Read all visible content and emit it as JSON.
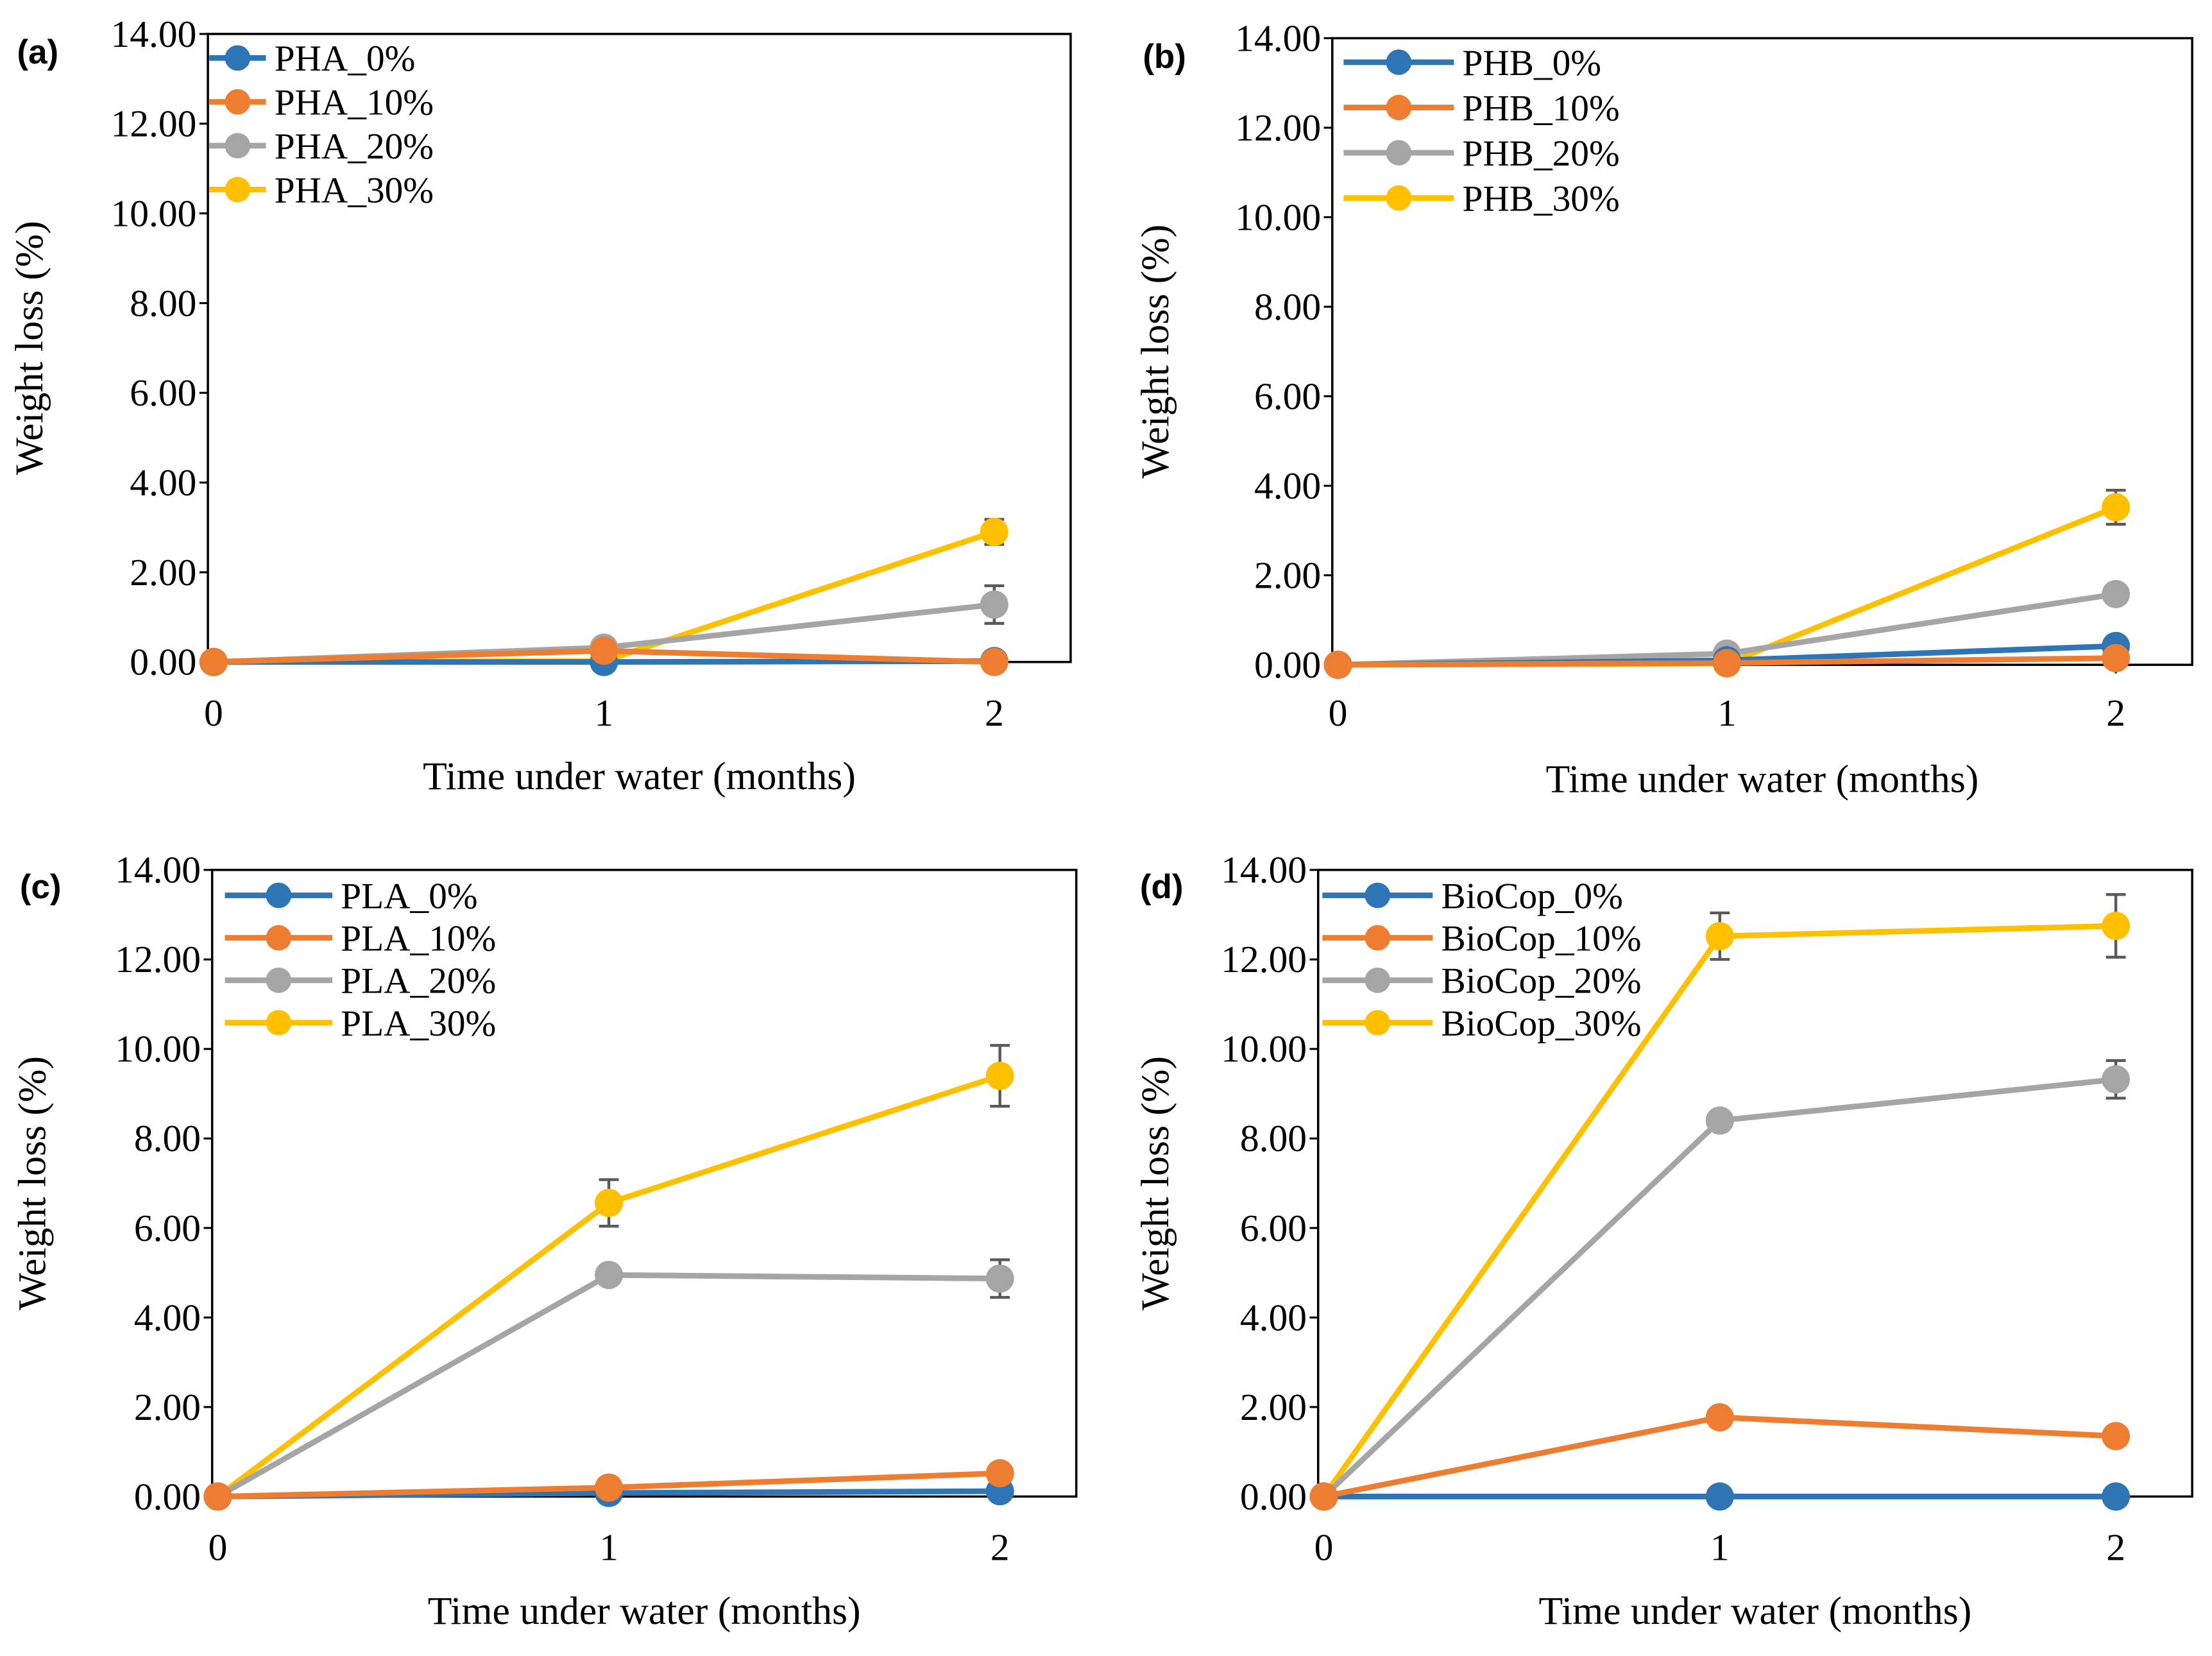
{
  "colors": {
    "s0": "#2E75B6",
    "s1": "#ED7D31",
    "s2": "#A5A5A5",
    "s3": "#FFC000",
    "errorbar": "#595959",
    "axis": "#000000"
  },
  "chart_data": [
    {
      "type": "line",
      "panel_label": "(a)",
      "xlabel": "Time under water (months)",
      "ylabel": "Weight loss (%)",
      "x": [
        0,
        1,
        2
      ],
      "ylim": [
        0,
        14
      ],
      "yticks": [
        "0.00",
        "2.00",
        "4.00",
        "6.00",
        "8.00",
        "10.00",
        "12.00",
        "14.00"
      ],
      "xticks": [
        "0",
        "1",
        "2"
      ],
      "legend_position": "top-left",
      "series": [
        {
          "name": "PHA_0%",
          "values": [
            0,
            0,
            0.02
          ],
          "errors": [
            0,
            0,
            0
          ]
        },
        {
          "name": "PHA_10%",
          "values": [
            0,
            0.25,
            0
          ],
          "errors": [
            0,
            0,
            0
          ]
        },
        {
          "name": "PHA_20%",
          "values": [
            0,
            0.32,
            1.28
          ],
          "errors": [
            0,
            0,
            0.42
          ]
        },
        {
          "name": "PHA_30%",
          "values": [
            0,
            0.02,
            2.9
          ],
          "errors": [
            0,
            0,
            0.28
          ]
        }
      ]
    },
    {
      "type": "line",
      "panel_label": "(b)",
      "xlabel": "Time under water (months)",
      "ylabel": "Weight loss (%)",
      "x": [
        0,
        1,
        2
      ],
      "ylim": [
        0,
        14
      ],
      "yticks": [
        "0.00",
        "2.00",
        "4.00",
        "6.00",
        "8.00",
        "10.00",
        "12.00",
        "14.00"
      ],
      "xticks": [
        "0",
        "1",
        "2"
      ],
      "legend_position": "top-left",
      "series": [
        {
          "name": "PHB_0%",
          "values": [
            0,
            0.1,
            0.42
          ],
          "errors": [
            0,
            0,
            0
          ]
        },
        {
          "name": "PHB_10%",
          "values": [
            0,
            0.04,
            0.15
          ],
          "errors": [
            0,
            0,
            0
          ]
        },
        {
          "name": "PHB_20%",
          "values": [
            0,
            0.25,
            1.58
          ],
          "errors": [
            0,
            0,
            0
          ]
        },
        {
          "name": "PHB_30%",
          "values": [
            0,
            0.03,
            3.52
          ],
          "errors": [
            0,
            0,
            0.38
          ]
        }
      ]
    },
    {
      "type": "line",
      "panel_label": "(c)",
      "xlabel": "Time under water (months)",
      "ylabel": "Weight loss (%)",
      "x": [
        0,
        1,
        2
      ],
      "ylim": [
        0,
        14
      ],
      "yticks": [
        "0.00",
        "2.00",
        "4.00",
        "6.00",
        "8.00",
        "10.00",
        "12.00",
        "14.00"
      ],
      "xticks": [
        "0",
        "1",
        "2"
      ],
      "legend_position": "top-left",
      "series": [
        {
          "name": "PLA_0%",
          "values": [
            0,
            0.08,
            0.12
          ],
          "errors": [
            0,
            0,
            0
          ]
        },
        {
          "name": "PLA_10%",
          "values": [
            0,
            0.2,
            0.52
          ],
          "errors": [
            0,
            0,
            0
          ]
        },
        {
          "name": "PLA_20%",
          "values": [
            0,
            4.95,
            4.87
          ],
          "errors": [
            0,
            0,
            0.42
          ]
        },
        {
          "name": "PLA_30%",
          "values": [
            0,
            6.56,
            9.4
          ],
          "errors": [
            0,
            0.52,
            0.68
          ]
        }
      ]
    },
    {
      "type": "line",
      "panel_label": "(d)",
      "xlabel": "Time under water (months)",
      "ylabel": "Weight loss (%)",
      "x": [
        0,
        1,
        2
      ],
      "ylim": [
        0,
        14
      ],
      "yticks": [
        "0.00",
        "2.00",
        "4.00",
        "6.00",
        "8.00",
        "10.00",
        "12.00",
        "14.00"
      ],
      "xticks": [
        "0",
        "1",
        "2"
      ],
      "legend_position": "top-left",
      "series": [
        {
          "name": "BioCop_0%",
          "values": [
            0,
            0,
            0
          ],
          "errors": [
            0,
            0,
            0
          ]
        },
        {
          "name": "BioCop_10%",
          "values": [
            0,
            1.77,
            1.35
          ],
          "errors": [
            0,
            0,
            0
          ]
        },
        {
          "name": "BioCop_20%",
          "values": [
            0,
            8.4,
            9.32
          ],
          "errors": [
            0,
            0,
            0.42
          ]
        },
        {
          "name": "BioCop_30%",
          "values": [
            0,
            12.52,
            12.75
          ],
          "errors": [
            0,
            0.52,
            0.7
          ]
        }
      ]
    }
  ]
}
